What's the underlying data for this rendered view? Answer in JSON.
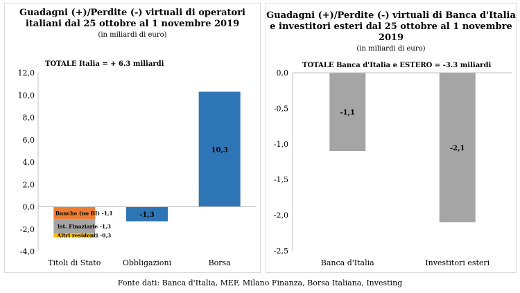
{
  "chart_data": [
    {
      "type": "bar",
      "title": "Guadagni (+)/Perdite (-) virtuali di operatori italiani dal 25 ottobre al 1 novembre 2019",
      "subtitle": "(in miliardi di euro)",
      "annotation": "TOTALE Italia = + 6.3 miliardi",
      "categories": [
        "Titoli di Stato",
        "Obbligazioni",
        "Borsa"
      ],
      "ylim": [
        -4,
        12
      ],
      "yticks": [
        "12,0",
        "10,0",
        "8,0",
        "6,0",
        "4,0",
        "2,0",
        "0,0",
        "-2,0",
        "-4,0"
      ],
      "stacked": [
        {
          "category": "Titoli di Stato",
          "label": "Banche (no BI) -1,1",
          "value": -1.1,
          "color": "#ED7D31"
        },
        {
          "category": "Titoli di Stato",
          "label": "Ist. Finaziarie -1,3",
          "value": -1.3,
          "color": "#A5A5A5"
        },
        {
          "category": "Titoli di Stato",
          "label": "Altri residenti -0,3",
          "value": -0.3,
          "color": "#FFC000"
        }
      ],
      "bars": [
        {
          "category": "Obbligazioni",
          "value": -1.3,
          "label": "-1,3",
          "color": "#2E75B6"
        },
        {
          "category": "Borsa",
          "value": 10.3,
          "label": "10,3",
          "color": "#2E75B6"
        }
      ]
    },
    {
      "type": "bar",
      "title": "Guadagni (+)/Perdite (-) virtuali di Banca d'Italia e investitori esteri dal 25 ottobre al 1 novembre 2019",
      "subtitle": "(in miliardi di euro)",
      "annotation": "TOTALE Banca d'Italia e ESTERO = -3.3 miliardi",
      "categories": [
        "Banca d'Italia",
        "Investitori esteri"
      ],
      "values": [
        -1.1,
        -2.1
      ],
      "value_labels": [
        "-1,1",
        "-2,1"
      ],
      "color": "#A5A5A5",
      "ylim": [
        -2.5,
        0
      ],
      "yticks": [
        "0,0",
        "-0,5",
        "-1,0",
        "-1,5",
        "-2,0",
        "-2,5"
      ]
    }
  ],
  "source": "Fonte dati: Banca d'Italia, MEF, Milano Finanza, Borsa Italiana, Investing"
}
